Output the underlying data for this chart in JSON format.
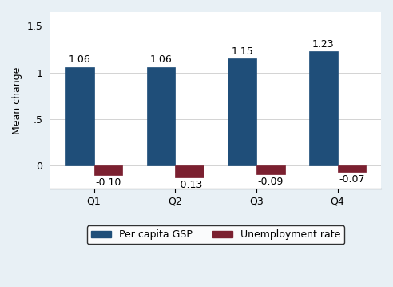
{
  "quarters": [
    "Q1",
    "Q2",
    "Q3",
    "Q4"
  ],
  "gsp_values": [
    1.06,
    1.06,
    1.15,
    1.23
  ],
  "unemp_values": [
    -0.1,
    -0.13,
    -0.09,
    -0.07
  ],
  "gsp_color": "#1F4E79",
  "unemp_color": "#7B2030",
  "bar_width": 0.35,
  "ylabel": "Mean change",
  "ylim": [
    -0.25,
    1.65
  ],
  "yticks": [
    0,
    0.5,
    1.0,
    1.5
  ],
  "ytick_labels": [
    "0",
    ".5",
    "1",
    "1.5"
  ],
  "legend_gsp": "Per capita GSP",
  "legend_unemp": "Unemployment rate",
  "bg_color": "#E8F0F5",
  "plot_bg_color": "#FFFFFF",
  "label_fontsize": 9,
  "axis_fontsize": 9,
  "legend_fontsize": 9
}
